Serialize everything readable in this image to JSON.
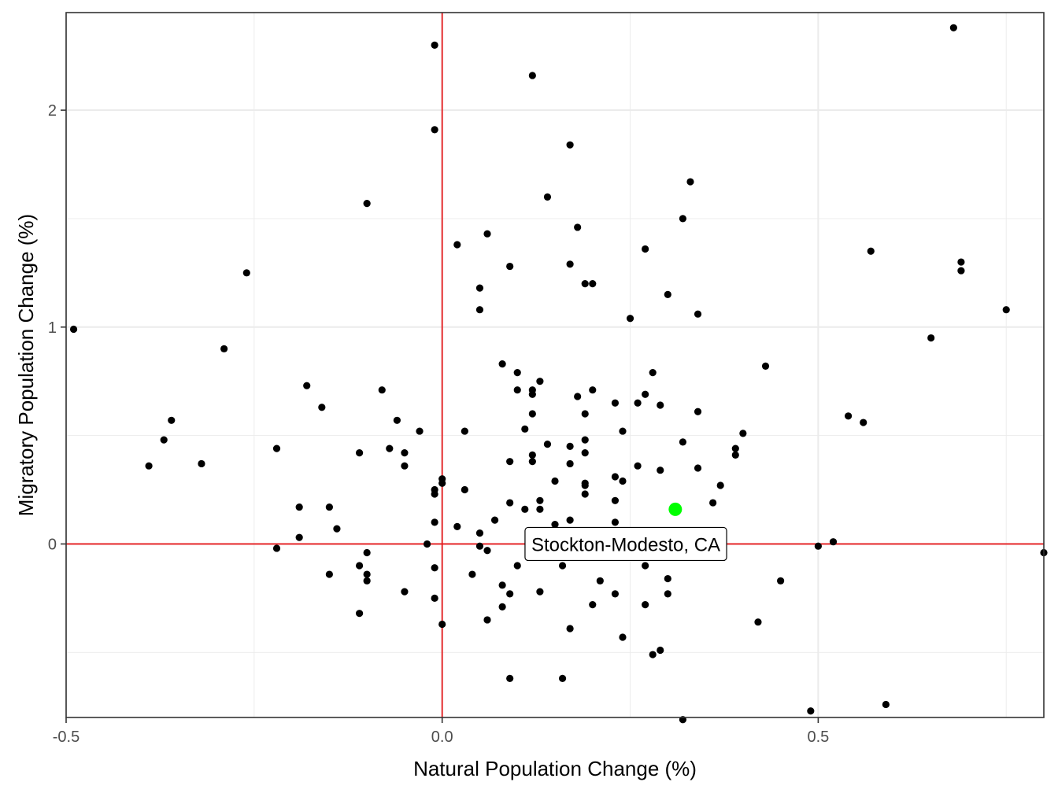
{
  "chart_data": {
    "type": "scatter",
    "title": "",
    "xlabel": "Natural Population Change (%)",
    "ylabel": "Migratory Population Change (%)",
    "xlim": [
      -0.5,
      0.8
    ],
    "ylim": [
      -0.8,
      2.45
    ],
    "x_ticks": [
      -0.5,
      0.0,
      0.5
    ],
    "x_tick_labels": [
      "-0.5",
      "0.0",
      "0.5"
    ],
    "y_ticks": [
      0,
      1,
      2
    ],
    "y_tick_labels": [
      "0",
      "1",
      "2"
    ],
    "grid": true,
    "reference_lines": {
      "x": 0,
      "y": 0,
      "color": "#e41a1c"
    },
    "colors": {
      "point": "#000000",
      "highlight": "#00ff00",
      "reference": "#e41a1c",
      "grid": "#ebebeb"
    },
    "highlight": {
      "label": "Stockton-Modesto, CA",
      "x": 0.31,
      "y": 0.16
    },
    "points": [
      [
        0.68,
        2.38
      ],
      [
        -0.01,
        2.3
      ],
      [
        0.12,
        2.16
      ],
      [
        -0.01,
        1.91
      ],
      [
        0.17,
        1.84
      ],
      [
        0.33,
        1.67
      ],
      [
        0.14,
        1.6
      ],
      [
        -0.1,
        1.57
      ],
      [
        0.32,
        1.5
      ],
      [
        0.18,
        1.46
      ],
      [
        0.06,
        1.43
      ],
      [
        0.02,
        1.38
      ],
      [
        0.27,
        1.36
      ],
      [
        0.57,
        1.35
      ],
      [
        0.69,
        1.3
      ],
      [
        0.17,
        1.29
      ],
      [
        0.09,
        1.28
      ],
      [
        0.69,
        1.26
      ],
      [
        -0.26,
        1.25
      ],
      [
        0.19,
        1.2
      ],
      [
        0.2,
        1.2
      ],
      [
        0.05,
        1.18
      ],
      [
        0.3,
        1.15
      ],
      [
        0.75,
        1.08
      ],
      [
        0.05,
        1.08
      ],
      [
        0.34,
        1.06
      ],
      [
        0.25,
        1.04
      ],
      [
        -0.49,
        0.99
      ],
      [
        0.65,
        0.95
      ],
      [
        -0.29,
        0.9
      ],
      [
        0.08,
        0.83
      ],
      [
        0.43,
        0.82
      ],
      [
        0.1,
        0.79
      ],
      [
        0.28,
        0.79
      ],
      [
        0.13,
        0.75
      ],
      [
        -0.18,
        0.73
      ],
      [
        0.12,
        0.71
      ],
      [
        0.1,
        0.71
      ],
      [
        -0.08,
        0.71
      ],
      [
        0.2,
        0.71
      ],
      [
        0.12,
        0.69
      ],
      [
        0.27,
        0.69
      ],
      [
        0.18,
        0.68
      ],
      [
        0.23,
        0.65
      ],
      [
        0.26,
        0.65
      ],
      [
        0.29,
        0.64
      ],
      [
        -0.16,
        0.63
      ],
      [
        0.34,
        0.61
      ],
      [
        0.12,
        0.6
      ],
      [
        0.19,
        0.6
      ],
      [
        0.54,
        0.59
      ],
      [
        -0.36,
        0.57
      ],
      [
        -0.06,
        0.57
      ],
      [
        0.56,
        0.56
      ],
      [
        0.11,
        0.53
      ],
      [
        -0.03,
        0.52
      ],
      [
        0.03,
        0.52
      ],
      [
        0.24,
        0.52
      ],
      [
        0.4,
        0.51
      ],
      [
        -0.37,
        0.48
      ],
      [
        0.19,
        0.48
      ],
      [
        0.32,
        0.47
      ],
      [
        0.14,
        0.46
      ],
      [
        0.17,
        0.45
      ],
      [
        -0.22,
        0.44
      ],
      [
        -0.07,
        0.44
      ],
      [
        0.39,
        0.44
      ],
      [
        -0.11,
        0.42
      ],
      [
        -0.05,
        0.42
      ],
      [
        0.19,
        0.42
      ],
      [
        0.39,
        0.41
      ],
      [
        0.12,
        0.41
      ],
      [
        0.12,
        0.38
      ],
      [
        0.09,
        0.38
      ],
      [
        0.17,
        0.37
      ],
      [
        -0.32,
        0.37
      ],
      [
        0.26,
        0.36
      ],
      [
        -0.05,
        0.36
      ],
      [
        -0.39,
        0.36
      ],
      [
        0.34,
        0.35
      ],
      [
        0.29,
        0.34
      ],
      [
        0.23,
        0.31
      ],
      [
        0.0,
        0.3
      ],
      [
        0.15,
        0.29
      ],
      [
        0.24,
        0.29
      ],
      [
        0.0,
        0.28
      ],
      [
        0.19,
        0.28
      ],
      [
        0.19,
        0.27
      ],
      [
        0.37,
        0.27
      ],
      [
        -0.01,
        0.25
      ],
      [
        0.03,
        0.25
      ],
      [
        0.19,
        0.23
      ],
      [
        -0.01,
        0.23
      ],
      [
        0.13,
        0.2
      ],
      [
        0.23,
        0.2
      ],
      [
        0.09,
        0.19
      ],
      [
        0.36,
        0.19
      ],
      [
        -0.19,
        0.17
      ],
      [
        -0.15,
        0.17
      ],
      [
        0.11,
        0.16
      ],
      [
        0.13,
        0.16
      ],
      [
        0.07,
        0.11
      ],
      [
        0.17,
        0.11
      ],
      [
        0.23,
        0.1
      ],
      [
        -0.01,
        0.1
      ],
      [
        0.15,
        0.09
      ],
      [
        0.02,
        0.08
      ],
      [
        -0.14,
        0.07
      ],
      [
        0.05,
        0.05
      ],
      [
        -0.19,
        0.03
      ],
      [
        0.52,
        0.01
      ],
      [
        -0.02,
        0.0
      ],
      [
        0.05,
        -0.01
      ],
      [
        0.5,
        -0.01
      ],
      [
        -0.22,
        -0.02
      ],
      [
        0.06,
        -0.03
      ],
      [
        0.8,
        -0.04
      ],
      [
        -0.1,
        -0.04
      ],
      [
        0.21,
        -0.06
      ],
      [
        -0.11,
        -0.1
      ],
      [
        -0.01,
        -0.11
      ],
      [
        0.1,
        -0.1
      ],
      [
        0.16,
        -0.1
      ],
      [
        0.27,
        -0.1
      ],
      [
        -0.15,
        -0.14
      ],
      [
        -0.1,
        -0.14
      ],
      [
        0.04,
        -0.14
      ],
      [
        0.3,
        -0.16
      ],
      [
        -0.1,
        -0.17
      ],
      [
        0.45,
        -0.17
      ],
      [
        0.21,
        -0.17
      ],
      [
        0.08,
        -0.19
      ],
      [
        -0.05,
        -0.22
      ],
      [
        0.13,
        -0.22
      ],
      [
        0.23,
        -0.23
      ],
      [
        0.09,
        -0.23
      ],
      [
        0.3,
        -0.23
      ],
      [
        -0.01,
        -0.25
      ],
      [
        0.27,
        -0.28
      ],
      [
        0.2,
        -0.28
      ],
      [
        0.08,
        -0.29
      ],
      [
        -0.11,
        -0.32
      ],
      [
        0.06,
        -0.35
      ],
      [
        0.42,
        -0.36
      ],
      [
        0.0,
        -0.37
      ],
      [
        0.17,
        -0.39
      ],
      [
        0.24,
        -0.43
      ],
      [
        0.29,
        -0.49
      ],
      [
        0.28,
        -0.51
      ],
      [
        0.09,
        -0.62
      ],
      [
        0.16,
        -0.62
      ],
      [
        0.59,
        -0.74
      ],
      [
        0.49,
        -0.77
      ],
      [
        0.32,
        -0.81
      ]
    ]
  }
}
